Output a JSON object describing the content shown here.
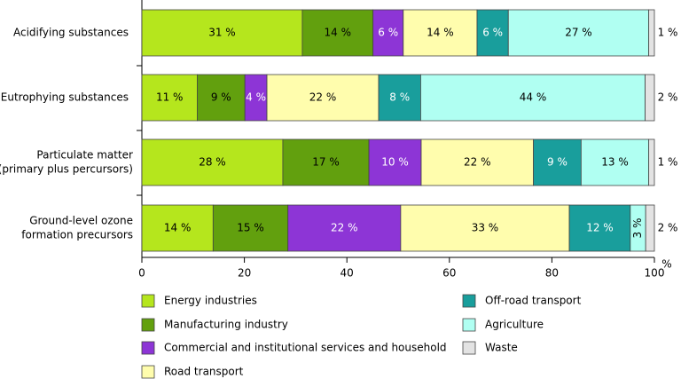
{
  "chart_data": {
    "type": "bar",
    "orientation": "horizontal",
    "stacked": true,
    "categories": [
      [
        "Acidifying substances"
      ],
      [
        "Eutrophying substances"
      ],
      [
        "Particulate matter",
        "(primary plus percursors)"
      ],
      [
        "Ground-level ozone",
        "formation precursors"
      ]
    ],
    "series": [
      {
        "name": "Energy industries",
        "color": "#b5e61d",
        "values": [
          31.3,
          10.8,
          27.5,
          13.9
        ],
        "labels": [
          "31 %",
          "11 %",
          "28 %",
          "14 %"
        ]
      },
      {
        "name": "Manufacturing industry",
        "color": "#62a00e",
        "values": [
          13.8,
          9.3,
          16.8,
          14.6
        ],
        "labels": [
          "14 %",
          "9 %",
          "17 %",
          "15 %"
        ]
      },
      {
        "name": "Commercial and institutional services and household",
        "color": "#8d35d6",
        "values": [
          5.9,
          4.3,
          10.2,
          22.0
        ],
        "labels": [
          "6 %",
          "4 %",
          "10 %",
          "22 %"
        ]
      },
      {
        "name": "Road transport",
        "color": "#fffdad",
        "values": [
          14.4,
          21.8,
          21.9,
          32.9
        ],
        "labels": [
          "14 %",
          "22 %",
          "22 %",
          "33 %"
        ]
      },
      {
        "name": "Off-road transport",
        "color": "#199e9c",
        "values": [
          6.1,
          8.2,
          9.3,
          11.9
        ],
        "labels": [
          "6 %",
          "8 %",
          "9 %",
          "12 %"
        ]
      },
      {
        "name": "Agriculture",
        "color": "#b0fff2",
        "values": [
          27.4,
          43.8,
          13.2,
          3.0
        ],
        "labels": [
          "27 %",
          "44 %",
          "13 %",
          "3 %"
        ]
      },
      {
        "name": "Waste",
        "color": "#e3e3e3",
        "values": [
          1.1,
          1.8,
          1.1,
          1.7
        ],
        "labels": [
          "1 %",
          "2 %",
          "1 %",
          "2 %"
        ]
      }
    ],
    "xlim": [
      0,
      100
    ],
    "xticks": [
      "0",
      "20",
      "40",
      "60",
      "80",
      "100"
    ],
    "xunit": "%",
    "legend_position": "bottom"
  }
}
